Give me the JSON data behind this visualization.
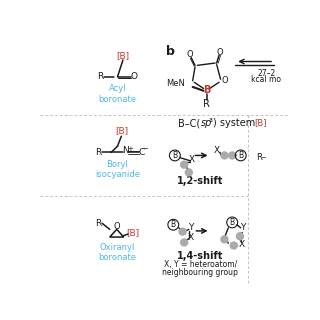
{
  "bg_color": "#ffffff",
  "blue_color": "#4db8e8",
  "red_color": "#c0392b",
  "dark_color": "#1a1a1a",
  "gray_color": "#aaaaaa",
  "dashed_color": "#aaaaaa",
  "title_b": "b",
  "acyl_label": "Acyl\nboronate",
  "boryl_label": "Boryl\nisocyanide",
  "oxiranyl_label": "Oxiranyl\nboronate",
  "bc_sp3": "B–C(sp³) system",
  "shift12": "1,2-shift",
  "shift14": "1,4-shift",
  "xy_label": "X, Y = heteroatom/\nneighbouring group",
  "kcal_line1": "27–2",
  "kcal_line2": "kcal mo"
}
